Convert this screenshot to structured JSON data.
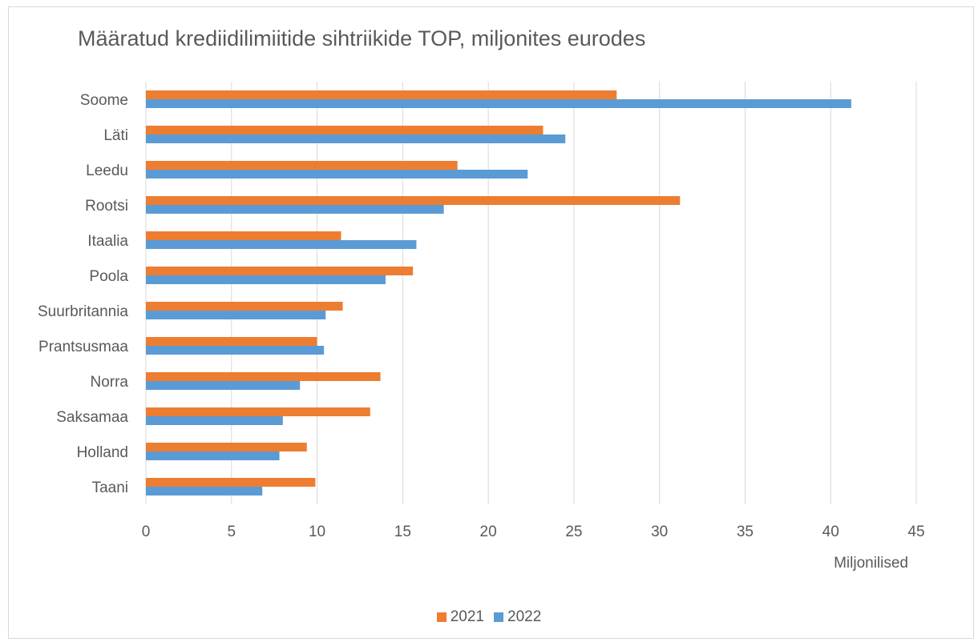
{
  "chart_data": {
    "type": "bar",
    "orientation": "horizontal",
    "title": "Määratud krediidilimiitide sihtriikide TOP, miljonites eurodes",
    "xlabel": "Miljonilised",
    "ylabel": "",
    "xlim": [
      0,
      45
    ],
    "xticks": [
      "0",
      "5",
      "10",
      "15",
      "20",
      "25",
      "30",
      "35",
      "40",
      "45"
    ],
    "grid": true,
    "legend_position": "bottom",
    "categories": [
      "Soome",
      "Läti",
      "Leedu",
      "Rootsi",
      "Itaalia",
      "Poola",
      "Suurbritannia",
      "Prantsusmaa",
      "Norra",
      "Saksamaa",
      "Holland",
      "Taani"
    ],
    "series": [
      {
        "name": "2021",
        "color": "#ED7D31",
        "values": [
          27.5,
          23.2,
          18.2,
          31.2,
          11.4,
          15.6,
          11.5,
          10.0,
          13.7,
          13.1,
          9.4,
          9.9
        ]
      },
      {
        "name": "2022",
        "color": "#5B9BD5",
        "values": [
          41.2,
          24.5,
          22.3,
          17.4,
          15.8,
          14.0,
          10.5,
          10.4,
          9.0,
          8.0,
          7.8,
          6.8
        ]
      }
    ]
  }
}
